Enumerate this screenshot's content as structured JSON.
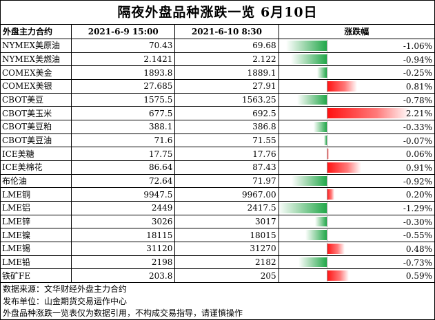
{
  "title": "隔夜外盘品种涨跌一览  6月10日",
  "header": {
    "name": "外盘主力合约",
    "col1": "2021-6-9 15:00",
    "col2": "2021-6-10 8:30",
    "col3": "涨跌幅"
  },
  "colors": {
    "up": "#ff1010",
    "down": "#22a84a"
  },
  "rows": [
    {
      "name": "NYMEX美原油",
      "prev": "70.43",
      "curr": "69.68",
      "change": "-1.06%",
      "change_value": -1.06
    },
    {
      "name": "NYMEX美燃油",
      "prev": "2.1421",
      "curr": "2.122",
      "change": "-0.94%",
      "change_value": -0.94
    },
    {
      "name": "COMEX美金",
      "prev": "1893.8",
      "curr": "1889.1",
      "change": "-0.25%",
      "change_value": -0.25
    },
    {
      "name": "COMEX美银",
      "prev": "27.685",
      "curr": "27.91",
      "change": "0.81%",
      "change_value": 0.81
    },
    {
      "name": "CBOT美豆",
      "prev": "1575.5",
      "curr": "1563.25",
      "change": "-0.78%",
      "change_value": -0.78
    },
    {
      "name": "CBOT美玉米",
      "prev": "677.5",
      "curr": "692.5",
      "change": "2.21%",
      "change_value": 2.21
    },
    {
      "name": "CBOT美豆粕",
      "prev": "388.1",
      "curr": "386.8",
      "change": "-0.33%",
      "change_value": -0.33
    },
    {
      "name": "CBOT美豆油",
      "prev": "71.6",
      "curr": "71.55",
      "change": "-0.07%",
      "change_value": -0.07
    },
    {
      "name": "ICE美糖",
      "prev": "17.75",
      "curr": "17.76",
      "change": "0.06%",
      "change_value": 0.06
    },
    {
      "name": "ICE美棉花",
      "prev": "86.64",
      "curr": "87.43",
      "change": "0.91%",
      "change_value": 0.91
    },
    {
      "name": "布伦油",
      "prev": "72.64",
      "curr": "71.97",
      "change": "-0.92%",
      "change_value": -0.92
    },
    {
      "name": "LME铜",
      "prev": "9947.5",
      "curr": "9967.00",
      "change": "0.20%",
      "change_value": 0.2
    },
    {
      "name": "LME铝",
      "prev": "2449",
      "curr": "2417.5",
      "change": "-1.29%",
      "change_value": -1.29
    },
    {
      "name": "LME锌",
      "prev": "3026",
      "curr": "3017",
      "change": "-0.30%",
      "change_value": -0.3
    },
    {
      "name": "LME镍",
      "prev": "18115",
      "curr": "18015",
      "change": "-0.55%",
      "change_value": -0.55
    },
    {
      "name": "LME锡",
      "prev": "31120",
      "curr": "31270",
      "change": "0.48%",
      "change_value": 0.48
    },
    {
      "name": "LME铅",
      "prev": "2198",
      "curr": "2182",
      "change": "-0.73%",
      "change_value": -0.73
    },
    {
      "name": "铁矿FE",
      "prev": "203.8",
      "curr": "205",
      "change": "0.59%",
      "change_value": 0.59
    }
  ],
  "footer": [
    "数据来源：文华财经外盘主力合约",
    "发布单位：山金期货交易运作中心",
    "外盘品种涨跌一览表仅为数据引用，不构成交易指导，请谨慎操作"
  ]
}
